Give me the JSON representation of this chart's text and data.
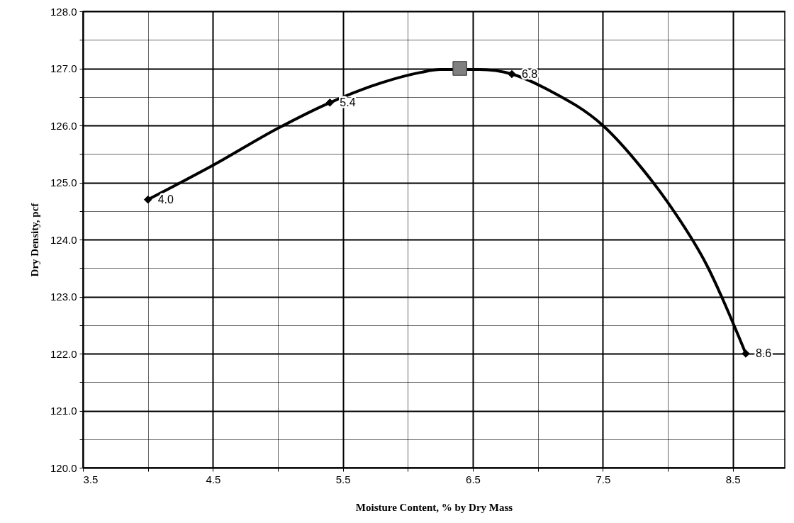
{
  "chart_data": {
    "type": "scatter",
    "xlabel": "Moisture Content, % by Dry Mass",
    "ylabel": "Dry Density, pcf",
    "xlim": [
      3.5,
      8.9
    ],
    "ylim": [
      120,
      128
    ],
    "xticks": [
      3.5,
      {
        "value": 4,
        "label": null
      },
      4.5,
      {
        "value": 5,
        "label": null
      },
      5.5,
      {
        "value": 6,
        "label": null
      },
      6.5,
      {
        "value": 7,
        "label": null
      },
      7.5,
      {
        "value": 8,
        "label": null
      },
      8.5
    ],
    "yticks": [
      {
        "value": 120,
        "label": "120.0"
      },
      {
        "value": 120.5,
        "label": null
      },
      {
        "value": 121,
        "label": "121.0"
      },
      {
        "value": 121.5,
        "label": null
      },
      {
        "value": 122,
        "label": "122.0"
      },
      {
        "value": 122.5,
        "label": null
      },
      {
        "value": 123,
        "label": "123.0"
      },
      {
        "value": 123.5,
        "label": null
      },
      {
        "value": 124,
        "label": "124.0"
      },
      {
        "value": 124.5,
        "label": null
      },
      {
        "value": 125,
        "label": "125.0"
      },
      {
        "value": 125.5,
        "label": null
      },
      {
        "value": 126,
        "label": "126.0"
      },
      {
        "value": 126.5,
        "label": null
      },
      {
        "value": 127,
        "label": "127.0"
      },
      {
        "value": 127.5,
        "label": null
      },
      {
        "value": 128,
        "label": "128.0"
      }
    ],
    "grid": true,
    "line_style": "solid",
    "series": [
      {
        "type": "line",
        "color": "#000000",
        "x": [
          4.0,
          4.5,
          5.0,
          5.4,
          5.8,
          6.1,
          6.25,
          6.55,
          6.8,
          7.1,
          7.5,
          7.8,
          8.0,
          8.3,
          8.6
        ],
        "values": [
          124.7,
          125.3,
          125.95,
          126.4,
          126.75,
          126.93,
          126.98,
          126.98,
          126.9,
          126.6,
          126.0,
          125.25,
          124.65,
          123.55,
          122.0
        ]
      },
      {
        "type": "scatter",
        "marker": "diamond",
        "color": "#000000",
        "x": [
          4.0,
          5.4,
          6.8,
          8.6
        ],
        "values": [
          124.7,
          126.4,
          126.9,
          122.0
        ]
      },
      {
        "type": "scatter",
        "marker": "square",
        "color": "#808080",
        "x": [
          6.4
        ],
        "values": [
          127.0
        ]
      }
    ],
    "annotations": [
      {
        "text": "4.0",
        "x": 4.0,
        "y": 124.7
      },
      {
        "text": "5.4",
        "x": 5.4,
        "y": 126.4
      },
      {
        "text": "6.8",
        "x": 6.8,
        "y": 126.9
      },
      {
        "text": "8.6",
        "x": 8.6,
        "y": 122.0
      }
    ]
  }
}
